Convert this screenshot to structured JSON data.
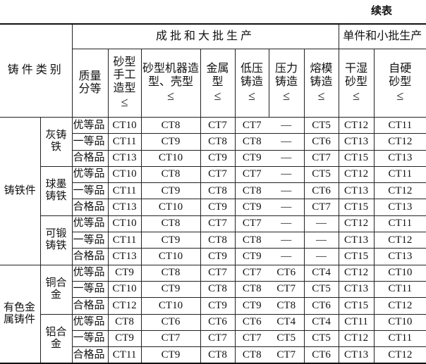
{
  "caption": "续表",
  "header": {
    "category": "铸件类别",
    "batch_large": "成批和大批生产",
    "batch_small": "单件和小批生产",
    "quality": "质量分等",
    "le": "≤",
    "methods": [
      "砂型手工造型",
      "砂型机器造型、壳型",
      "金属型",
      "低压铸造",
      "压力铸造",
      "熔模铸造",
      "干湿砂型",
      "自硬砂型"
    ]
  },
  "groups": [
    {
      "category": "铸铁件",
      "subgroups": [
        {
          "name": "灰铸铁",
          "rows": [
            {
              "grade": "优等品",
              "values": [
                "CT10",
                "CT8",
                "CT7",
                "CT7",
                "—",
                "CT5",
                "CT12",
                "CT11"
              ]
            },
            {
              "grade": "一等品",
              "values": [
                "CT11",
                "CT9",
                "CT8",
                "CT8",
                "—",
                "CT6",
                "CT13",
                "CT12"
              ]
            },
            {
              "grade": "合格品",
              "values": [
                "CT13",
                "CT10",
                "CT9",
                "CT9",
                "—",
                "CT7",
                "CT15",
                "CT13"
              ]
            }
          ]
        },
        {
          "name": "球墨铸铁",
          "rows": [
            {
              "grade": "优等品",
              "values": [
                "CT10",
                "CT8",
                "CT7",
                "CT7",
                "—",
                "CT5",
                "CT12",
                "CT11"
              ]
            },
            {
              "grade": "一等品",
              "values": [
                "CT11",
                "CT9",
                "CT8",
                "CT8",
                "—",
                "CT6",
                "CT13",
                "CT12"
              ]
            },
            {
              "grade": "合格品",
              "values": [
                "CT13",
                "CT10",
                "CT9",
                "CT9",
                "—",
                "CT7",
                "CT15",
                "CT13"
              ]
            }
          ]
        },
        {
          "name": "可锻铸铁",
          "rows": [
            {
              "grade": "优等品",
              "values": [
                "CT10",
                "CT8",
                "CT7",
                "CT7",
                "—",
                "—",
                "CT12",
                "CT11"
              ]
            },
            {
              "grade": "一等品",
              "values": [
                "CT11",
                "CT9",
                "CT8",
                "CT8",
                "—",
                "—",
                "CT13",
                "CT12"
              ]
            },
            {
              "grade": "合格品",
              "values": [
                "CT13",
                "CT10",
                "CT9",
                "CT9",
                "—",
                "—",
                "CT15",
                "CT13"
              ]
            }
          ]
        }
      ]
    },
    {
      "category": "有色金属铸件",
      "subgroups": [
        {
          "name": "铜合金",
          "rows": [
            {
              "grade": "优等品",
              "values": [
                "CT9",
                "CT8",
                "CT7",
                "CT7",
                "CT6",
                "CT4",
                "CT12",
                "CT10"
              ]
            },
            {
              "grade": "一等品",
              "values": [
                "CT10",
                "CT9",
                "CT8",
                "CT8",
                "CT7",
                "CT5",
                "CT13",
                "CT11"
              ]
            },
            {
              "grade": "合格品",
              "values": [
                "CT12",
                "CT10",
                "CT9",
                "CT9",
                "CT8",
                "CT6",
                "CT15",
                "CT12"
              ]
            }
          ]
        },
        {
          "name": "铝合金",
          "rows": [
            {
              "grade": "优等品",
              "values": [
                "CT8",
                "CT6",
                "CT6",
                "CT6",
                "CT4",
                "CT4",
                "CT11",
                "CT10"
              ]
            },
            {
              "grade": "一等品",
              "values": [
                "CT9",
                "CT7",
                "CT7",
                "CT7",
                "CT5",
                "CT5",
                "CT12",
                "CT11"
              ]
            },
            {
              "grade": "合格品",
              "values": [
                "CT11",
                "CT9",
                "CT8",
                "CT8",
                "CT7",
                "CT6",
                "CT13",
                "CT12"
              ]
            }
          ]
        }
      ]
    }
  ]
}
